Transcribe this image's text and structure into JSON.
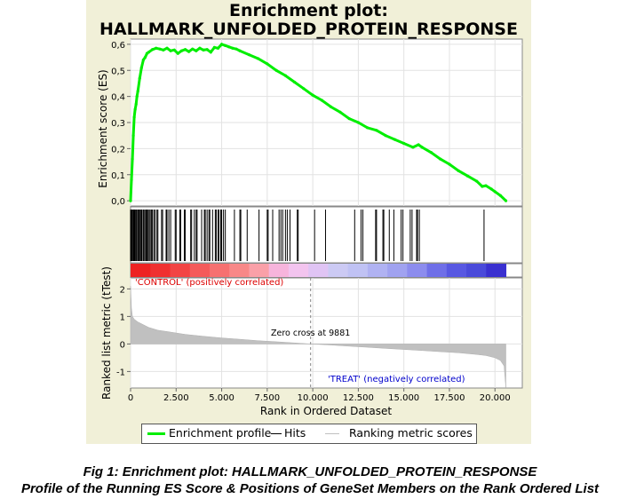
{
  "chart_data": {
    "type": "line",
    "title_line1": "Enrichment plot:",
    "title_line2": "HALLMARK_UNFOLDED_PROTEIN_RESPONSE",
    "es_plot": {
      "ylabel": "Enrichment score (ES)",
      "ylim": [
        -0.02,
        0.62
      ],
      "yticks": [
        0.0,
        0.1,
        0.2,
        0.3,
        0.4,
        0.5,
        0.6
      ],
      "ytick_labels": [
        "0,0",
        "0,1",
        "0,2",
        "0,3",
        "0,4",
        "0,5",
        "0,6"
      ],
      "color": "#00ee00",
      "x": [
        0,
        50,
        100,
        150,
        200,
        250,
        300,
        350,
        400,
        500,
        600,
        700,
        800,
        900,
        1000,
        1200,
        1400,
        1600,
        1800,
        2000,
        2200,
        2400,
        2600,
        2800,
        3000,
        3200,
        3400,
        3600,
        3800,
        4000,
        4200,
        4400,
        4600,
        4800,
        5000,
        5200,
        5400,
        5600,
        5800,
        6000,
        6500,
        7000,
        7500,
        8000,
        8500,
        9000,
        9500,
        10000,
        10500,
        11000,
        11500,
        12000,
        12500,
        13000,
        13500,
        14000,
        14500,
        15000,
        15500,
        15800,
        16000,
        16500,
        17000,
        17500,
        18000,
        18500,
        19000,
        19300,
        19500,
        19800,
        20000,
        20300,
        20600
      ],
      "y": [
        0.0,
        0.08,
        0.16,
        0.25,
        0.32,
        0.35,
        0.37,
        0.4,
        0.42,
        0.47,
        0.51,
        0.54,
        0.55,
        0.565,
        0.57,
        0.58,
        0.585,
        0.582,
        0.578,
        0.585,
        0.575,
        0.578,
        0.565,
        0.575,
        0.58,
        0.572,
        0.582,
        0.575,
        0.585,
        0.578,
        0.58,
        0.57,
        0.588,
        0.585,
        0.6,
        0.595,
        0.59,
        0.585,
        0.582,
        0.575,
        0.56,
        0.545,
        0.525,
        0.5,
        0.48,
        0.455,
        0.43,
        0.405,
        0.385,
        0.36,
        0.34,
        0.315,
        0.3,
        0.28,
        0.27,
        0.25,
        0.235,
        0.22,
        0.205,
        0.215,
        0.205,
        0.185,
        0.16,
        0.14,
        0.115,
        0.095,
        0.075,
        0.055,
        0.058,
        0.045,
        0.035,
        0.02,
        0.0
      ]
    },
    "hits": [
      0,
      40,
      80,
      130,
      170,
      220,
      260,
      310,
      350,
      410,
      460,
      520,
      570,
      610,
      680,
      730,
      790,
      850,
      900,
      960,
      1020,
      1080,
      1150,
      1200,
      1280,
      1350,
      1450,
      1500,
      1700,
      1760,
      1950,
      2000,
      2100,
      2200,
      2450,
      2500,
      2700,
      2750,
      2950,
      3000,
      3300,
      3350,
      3500,
      3600,
      3650,
      3900,
      4050,
      4100,
      4200,
      4300,
      4350,
      4500,
      4650,
      4700,
      4800,
      4850,
      4950,
      5000,
      5100,
      5200,
      5700,
      6000,
      6050,
      6400,
      7050,
      7500,
      7550,
      7800,
      8150,
      8250,
      8350,
      8500,
      8600,
      8750,
      9150,
      9200,
      10100,
      10700,
      12300,
      12650,
      12750,
      13450,
      13500,
      13850,
      13900,
      14200,
      14450,
      14850,
      14950,
      15350,
      15450,
      15700,
      15750,
      15850,
      19400
    ],
    "heatmap_colors": [
      "#ee2222",
      "#f03030",
      "#f24444",
      "#f45a5a",
      "#f67070",
      "#f88888",
      "#faa0a8",
      "#f7b4dc",
      "#f3c4ef",
      "#e0c4f4",
      "#cccaf4",
      "#c0c2f4",
      "#b0b2f2",
      "#a0a2f0",
      "#8c8cee",
      "#6f6fe8",
      "#5858e2",
      "#4a4ada",
      "#3a30d0"
    ],
    "metric_plot": {
      "ylabel": "Ranked list metric (tTest)",
      "ylim": [
        -1.6,
        2.4
      ],
      "yticks": [
        -1,
        0,
        1,
        2
      ],
      "ytick_labels": [
        "-1",
        "0",
        "1",
        "2"
      ],
      "x": [
        0,
        50,
        100,
        200,
        400,
        700,
        1000,
        1500,
        2000,
        3000,
        4000,
        5000,
        6000,
        7000,
        8000,
        9000,
        9881,
        11000,
        12000,
        13000,
        14000,
        15000,
        16000,
        17000,
        18000,
        19000,
        19500,
        20000,
        20300,
        20500,
        20600
      ],
      "y": [
        2.1,
        1.3,
        1.0,
        0.9,
        0.8,
        0.7,
        0.6,
        0.5,
        0.45,
        0.35,
        0.28,
        0.22,
        0.17,
        0.12,
        0.08,
        0.04,
        0.0,
        -0.04,
        -0.08,
        -0.12,
        -0.16,
        -0.2,
        -0.24,
        -0.28,
        -0.32,
        -0.38,
        -0.42,
        -0.5,
        -0.6,
        -0.8,
        -1.6
      ],
      "color": "#c0c0c0",
      "zero_cross": 9881,
      "zero_cross_label": "Zero cross at 9881",
      "positive_label": "'CONTROL' (positively correlated)",
      "negative_label": "'TREAT' (negatively correlated)",
      "positive_color": "#dd0000",
      "negative_color": "#0000cc"
    },
    "xlabel": "Rank in Ordered Dataset",
    "xlim": [
      0,
      21500
    ],
    "xticks": [
      0,
      2500,
      5000,
      7500,
      10000,
      12500,
      15000,
      17500,
      20000
    ],
    "xtick_labels": [
      "0",
      "2.500",
      "5.000",
      "7.500",
      "10.000",
      "12.500",
      "15.000",
      "17.500",
      "20.000"
    ],
    "legend": {
      "placement": "bottom",
      "entries": [
        {
          "label": "Enrichment profile",
          "color": "#00ee00"
        },
        {
          "label": "Hits",
          "color": "#000000"
        },
        {
          "label": "Ranking metric scores",
          "color": "#c0c0c0"
        }
      ]
    }
  },
  "caption": {
    "line1": "Fig 1: Enrichment plot: HALLMARK_UNFOLDED_PROTEIN_RESPONSE",
    "line2": "Profile of the Running ES Score & Positions of GeneSet Members on the Rank Ordered List"
  }
}
